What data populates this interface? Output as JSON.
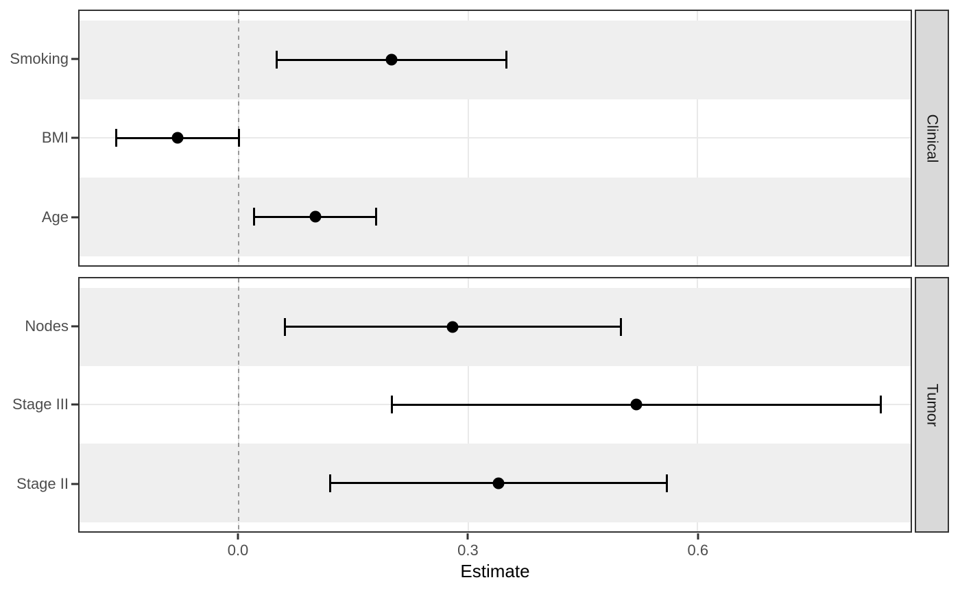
{
  "chart_data": {
    "type": "scatter",
    "subtype": "forest-plot: point estimates with horizontal error bars (confidence intervals)",
    "title": "",
    "xlabel": "Estimate",
    "ylabel": "",
    "x_tick_labels": [
      "0.0",
      "0.3",
      "0.6"
    ],
    "x_tick_values": [
      0.0,
      0.3,
      0.6
    ],
    "xlim": [
      -0.208,
      0.879
    ],
    "reference_line_x": 0.0,
    "reference_line_style": "dashed",
    "grid": "major gridlines only, hidden under alternating row stripes",
    "legend": "none",
    "facet_strip_position": "right",
    "facets": [
      {
        "label": "Clinical",
        "rows": [
          {
            "label": "Smoking",
            "estimate": 0.2,
            "ci_low": 0.05,
            "ci_high": 0.35
          },
          {
            "label": "BMI",
            "estimate": -0.08,
            "ci_low": -0.16,
            "ci_high": 0.0
          },
          {
            "label": "Age",
            "estimate": 0.1,
            "ci_low": 0.02,
            "ci_high": 0.18
          }
        ]
      },
      {
        "label": "Tumor",
        "rows": [
          {
            "label": "Nodes",
            "estimate": 0.28,
            "ci_low": 0.06,
            "ci_high": 0.5
          },
          {
            "label": "Stage III",
            "estimate": 0.52,
            "ci_low": 0.2,
            "ci_high": 0.84
          },
          {
            "label": "Stage II",
            "estimate": 0.34,
            "ci_low": 0.12,
            "ci_high": 0.56
          }
        ]
      }
    ],
    "colors": {
      "point": "#000000",
      "errorbar": "#000000",
      "stripe": "#EFEFEF",
      "gridline": "#E9E9E9",
      "panel_border": "#333333",
      "strip_fill": "#D9D9D9",
      "strip_text": "#1A1A1A",
      "axis_text": "#4D4D4D",
      "axis_title": "#000000",
      "reference_line": "#999999",
      "tick_mark": "#333333",
      "background": "#FFFFFF"
    }
  }
}
